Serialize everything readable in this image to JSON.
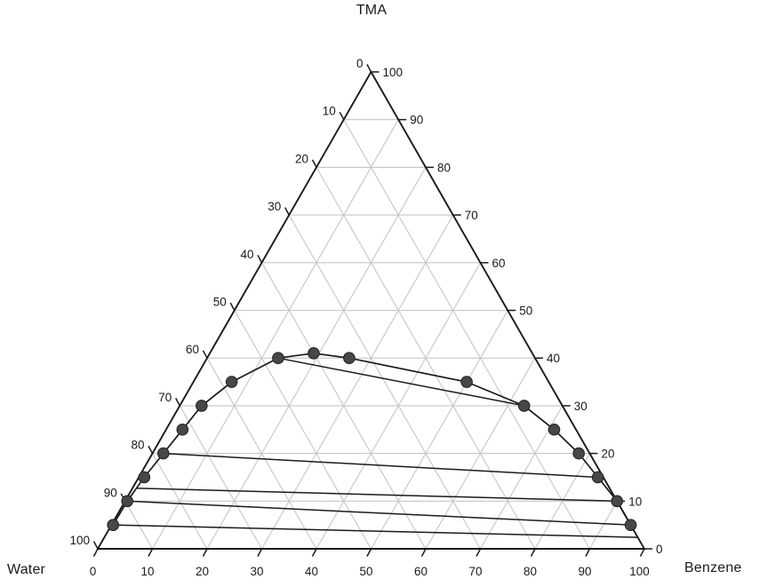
{
  "corner_labels": {
    "top": "TMA",
    "bottom_left": "Water",
    "bottom_right": "Benzene"
  },
  "axes": {
    "left": {
      "component": "Water",
      "label_values": [
        0,
        10,
        20,
        30,
        40,
        50,
        60,
        70,
        80,
        90,
        100
      ]
    },
    "right": {
      "component": "TMA",
      "label_values": [
        100,
        90,
        80,
        70,
        60,
        50,
        40,
        30,
        20,
        10,
        0
      ]
    },
    "bottom": {
      "component": "Benzene",
      "label_values": [
        0,
        10,
        20,
        30,
        40,
        50,
        60,
        70,
        80,
        90,
        100
      ]
    }
  },
  "chart_data": {
    "type": "scatter",
    "diagram": "ternary-phase-diagram",
    "title": "TMA",
    "components": {
      "top": "TMA",
      "bottom_left": "Water",
      "bottom_right": "Benzene"
    },
    "axis_range": [
      0,
      100
    ],
    "grid_step": 10,
    "grid_on": true,
    "binodal_points_pct": [
      {
        "tma": 5,
        "benzene": 0.3,
        "water": 94.7
      },
      {
        "tma": 10,
        "benzene": 0.4,
        "water": 89.6
      },
      {
        "tma": 15,
        "benzene": 1,
        "water": 84
      },
      {
        "tma": 20,
        "benzene": 2,
        "water": 78
      },
      {
        "tma": 25,
        "benzene": 3,
        "water": 72
      },
      {
        "tma": 30,
        "benzene": 4,
        "water": 66
      },
      {
        "tma": 35,
        "benzene": 7,
        "water": 58
      },
      {
        "tma": 40,
        "benzene": 13,
        "water": 47
      },
      {
        "tma": 41,
        "benzene": 19,
        "water": 40
      },
      {
        "tma": 40,
        "benzene": 26,
        "water": 34
      },
      {
        "tma": 35,
        "benzene": 50,
        "water": 15
      },
      {
        "tma": 30,
        "benzene": 63,
        "water": 7
      },
      {
        "tma": 25,
        "benzene": 71,
        "water": 4
      },
      {
        "tma": 20,
        "benzene": 78,
        "water": 2
      },
      {
        "tma": 15,
        "benzene": 84,
        "water": 1
      },
      {
        "tma": 10,
        "benzene": 90,
        "water": 0
      },
      {
        "tma": 5,
        "benzene": 95,
        "water": 0
      }
    ],
    "tie_lines_pct": [
      [
        {
          "tma": 40,
          "benzene": 13,
          "water": 47
        },
        {
          "tma": 30,
          "benzene": 63,
          "water": 7
        }
      ],
      [
        {
          "tma": 20,
          "benzene": 2,
          "water": 78
        },
        {
          "tma": 15,
          "benzene": 84,
          "water": 1
        }
      ],
      [
        {
          "tma": 12.7,
          "benzene": 0.7,
          "water": 86.6
        },
        {
          "tma": 10,
          "benzene": 90,
          "water": 0
        }
      ],
      [
        {
          "tma": 10,
          "benzene": 0.4,
          "water": 89.6
        },
        {
          "tma": 5,
          "benzene": 95,
          "water": 0
        }
      ],
      [
        {
          "tma": 5,
          "benzene": 0.3,
          "water": 94.7
        },
        {
          "tma": 2.4,
          "benzene": 97.6,
          "water": 0
        }
      ]
    ],
    "colors": {
      "grid": "#c6c6c6",
      "axis": "#1a1a1a",
      "line": "#1a1a1a",
      "marker_fill": "#474747",
      "marker_stroke": "#1f1f1f",
      "text": "#1a1a1a"
    }
  }
}
